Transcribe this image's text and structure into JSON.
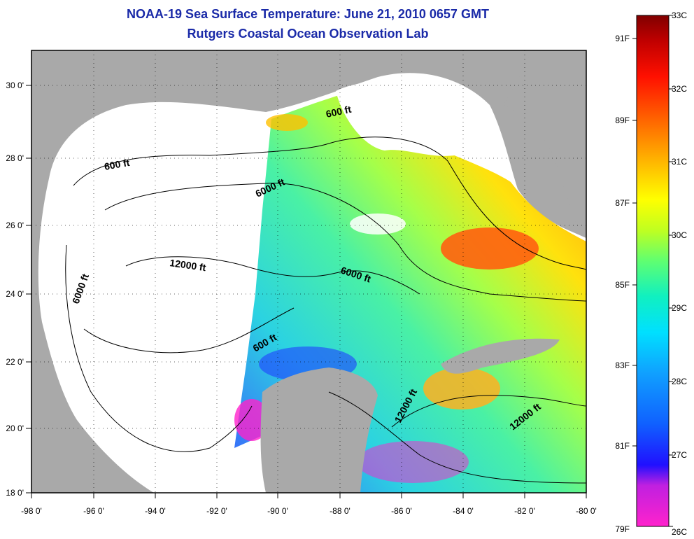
{
  "title": "NOAA-19 Sea Surface Temperature:  June 21, 2010 0657 GMT",
  "subtitle": "Rutgers Coastal Ocean Observation Lab",
  "axes": {
    "lon_labels": [
      "-98 0'",
      "-96 0'",
      "-94 0'",
      "-92 0'",
      "-90 0'",
      "-88 0'",
      "-86 0'",
      "-84 0'",
      "-82 0'",
      "-80 0'"
    ],
    "lat_labels": [
      "30 0'",
      "28 0'",
      "26 0'",
      "24 0'",
      "22 0'",
      "20 0'",
      "18 0'"
    ]
  },
  "contour_labels": [
    "600 ft",
    "600 ft",
    "6000 ft",
    "6000 ft",
    "12000 ft",
    "6000 ft",
    "600 ft",
    "12000 ft",
    "12000 ft"
  ],
  "colorbar": {
    "fahrenheit_labels": [
      "91F",
      "89F",
      "87F",
      "85F",
      "83F",
      "81F",
      "79F"
    ],
    "celsius_labels": [
      "33C",
      "32C",
      "31C",
      "30C",
      "29C",
      "28C",
      "27C",
      "26C"
    ]
  },
  "colors": {
    "land": "#a9a9a9",
    "no_data": "#ffffff",
    "title": "#1a2aa8"
  }
}
